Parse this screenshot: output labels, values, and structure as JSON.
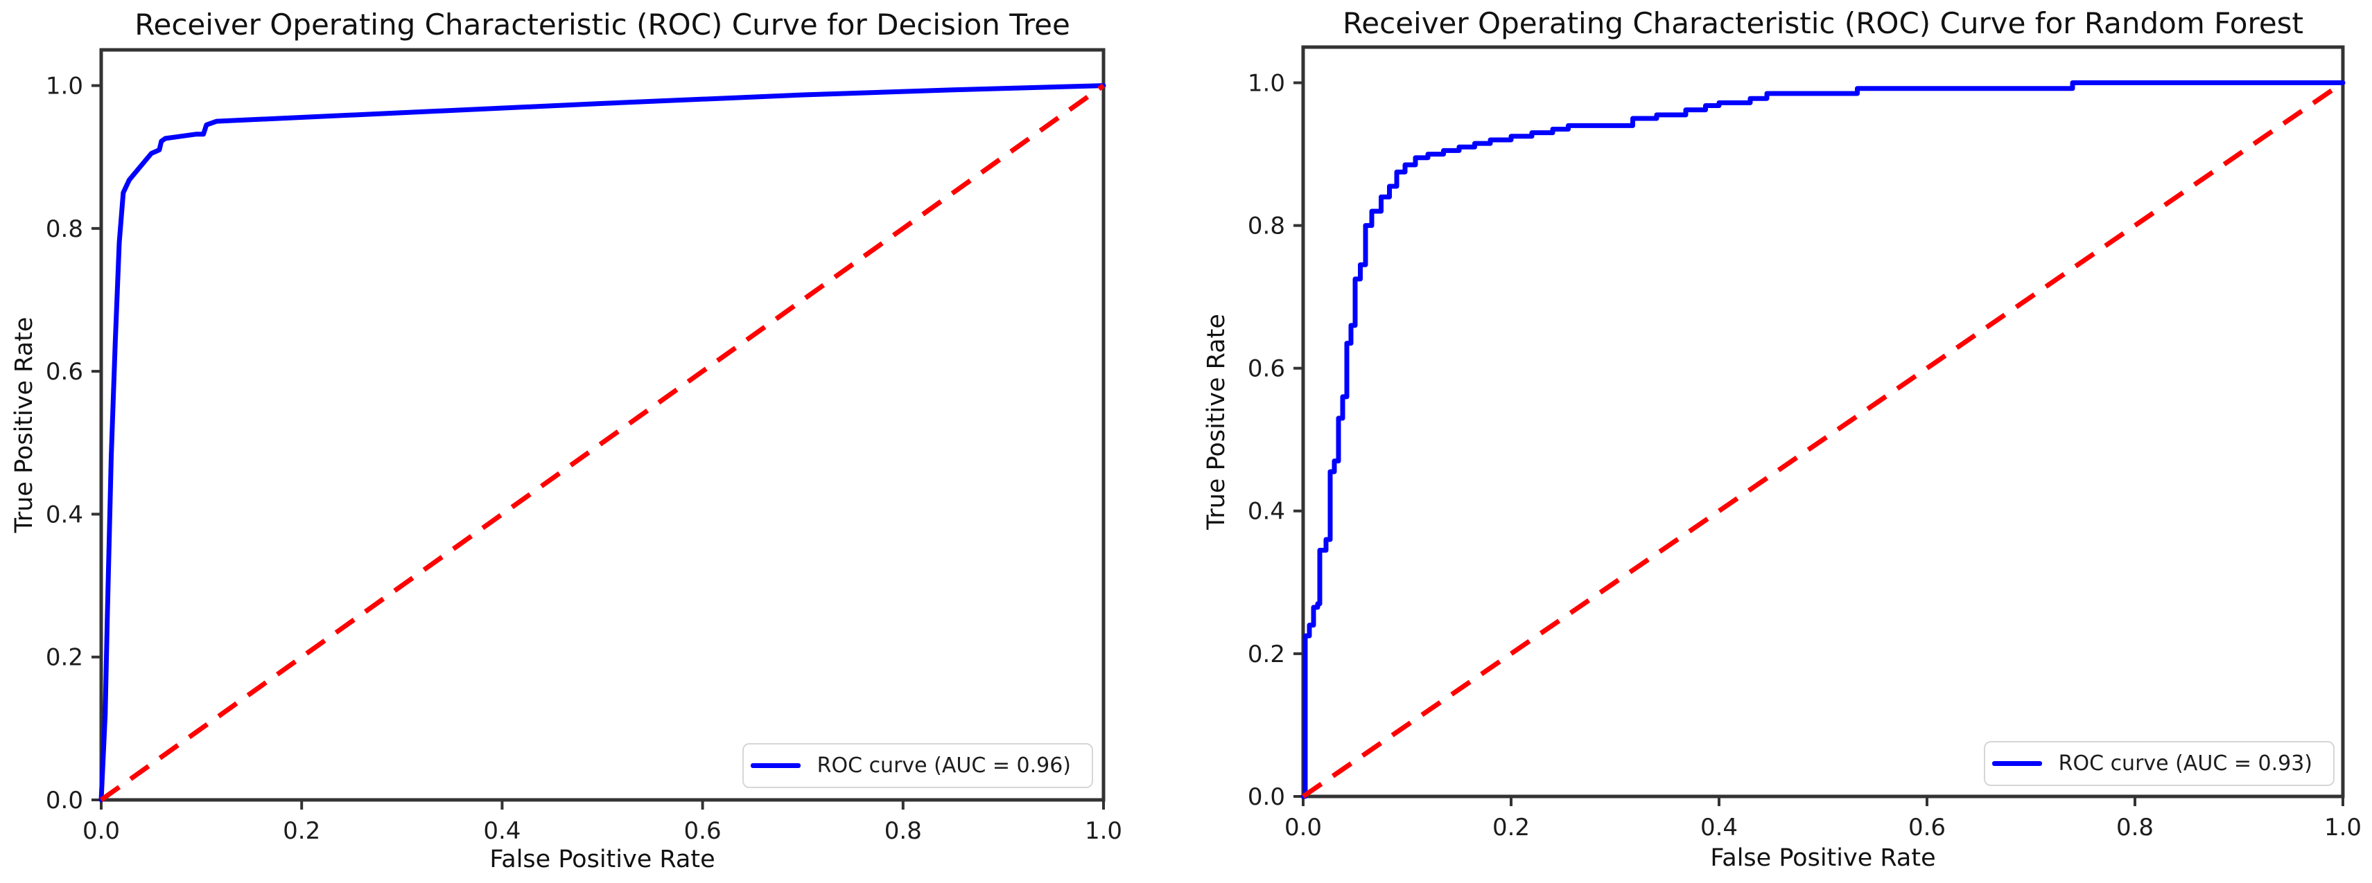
{
  "figure": {
    "background": "#ffffff"
  },
  "chart_data": [
    {
      "type": "line",
      "title": "Receiver Operating Characteristic (ROC) Curve for Decision Tree",
      "xlabel": "False Positive Rate",
      "ylabel": "True Positive Rate",
      "xlim": [
        0.0,
        1.0
      ],
      "ylim": [
        0.0,
        1.05
      ],
      "xticks": [
        "0.0",
        "0.2",
        "0.4",
        "0.6",
        "0.8",
        "1.0"
      ],
      "yticks": [
        "0.0",
        "0.2",
        "0.4",
        "0.6",
        "0.8",
        "1.0"
      ],
      "grid": false,
      "legend_position": "lower right",
      "auc": 0.96,
      "series": [
        {
          "name": "ROC curve (AUC = 0.96)",
          "color": "#0000FF",
          "linestyle": "solid",
          "draw_style": "linear",
          "in_legend": true,
          "points": [
            [
              0,
              0
            ],
            [
              0.004,
              0.12
            ],
            [
              0.006,
              0.25
            ],
            [
              0.01,
              0.48
            ],
            [
              0.014,
              0.64
            ],
            [
              0.018,
              0.78
            ],
            [
              0.022,
              0.85
            ],
            [
              0.028,
              0.868
            ],
            [
              0.05,
              0.905
            ],
            [
              0.058,
              0.91
            ],
            [
              0.06,
              0.922
            ],
            [
              0.064,
              0.926
            ],
            [
              0.095,
              0.932
            ],
            [
              0.102,
              0.932
            ],
            [
              0.105,
              0.945
            ],
            [
              0.115,
              0.95
            ],
            [
              0.3,
              0.962
            ],
            [
              0.5,
              0.975
            ],
            [
              0.7,
              0.987
            ],
            [
              0.85,
              0.994
            ],
            [
              1,
              1
            ]
          ]
        },
        {
          "name": "Chance diagonal",
          "color": "#FF0000",
          "linestyle": "dashed",
          "draw_style": "linear",
          "in_legend": false,
          "points": [
            [
              0,
              0
            ],
            [
              1,
              1
            ]
          ]
        }
      ]
    },
    {
      "type": "line",
      "title": "Receiver Operating Characteristic (ROC) Curve for Random Forest",
      "xlabel": "False Positive Rate",
      "ylabel": "True Positive Rate",
      "xlim": [
        0.0,
        1.0
      ],
      "ylim": [
        0.0,
        1.05
      ],
      "xticks": [
        "0.0",
        "0.2",
        "0.4",
        "0.6",
        "0.8",
        "1.0"
      ],
      "yticks": [
        "0.0",
        "0.2",
        "0.4",
        "0.6",
        "0.8",
        "1.0"
      ],
      "grid": false,
      "legend_position": "lower right",
      "auc": 0.93,
      "series": [
        {
          "name": "ROC curve (AUC = 0.93)",
          "color": "#0000FF",
          "linestyle": "solid",
          "draw_style": "steps-post",
          "in_legend": true,
          "points": [
            [
              0,
              0
            ],
            [
              0.002,
              0.225
            ],
            [
              0.006,
              0.24
            ],
            [
              0.01,
              0.265
            ],
            [
              0.014,
              0.27
            ],
            [
              0.016,
              0.345
            ],
            [
              0.022,
              0.36
            ],
            [
              0.026,
              0.455
            ],
            [
              0.03,
              0.47
            ],
            [
              0.034,
              0.53
            ],
            [
              0.038,
              0.56
            ],
            [
              0.042,
              0.635
            ],
            [
              0.046,
              0.66
            ],
            [
              0.05,
              0.725
            ],
            [
              0.055,
              0.745
            ],
            [
              0.06,
              0.8
            ],
            [
              0.066,
              0.82
            ],
            [
              0.075,
              0.84
            ],
            [
              0.083,
              0.855
            ],
            [
              0.09,
              0.875
            ],
            [
              0.098,
              0.885
            ],
            [
              0.108,
              0.895
            ],
            [
              0.12,
              0.9
            ],
            [
              0.135,
              0.905
            ],
            [
              0.15,
              0.91
            ],
            [
              0.165,
              0.915
            ],
            [
              0.18,
              0.92
            ],
            [
              0.2,
              0.925
            ],
            [
              0.22,
              0.93
            ],
            [
              0.24,
              0.935
            ],
            [
              0.255,
              0.94
            ],
            [
              0.317,
              0.95
            ],
            [
              0.34,
              0.955
            ],
            [
              0.368,
              0.962
            ],
            [
              0.387,
              0.968
            ],
            [
              0.4,
              0.972
            ],
            [
              0.43,
              0.978
            ],
            [
              0.446,
              0.985
            ],
            [
              0.533,
              0.992
            ],
            [
              0.74,
              1.0
            ],
            [
              1.0,
              1.0
            ]
          ]
        },
        {
          "name": "Chance diagonal",
          "color": "#FF0000",
          "linestyle": "dashed",
          "draw_style": "linear",
          "in_legend": false,
          "points": [
            [
              0,
              0
            ],
            [
              1,
              1
            ]
          ]
        }
      ]
    }
  ]
}
